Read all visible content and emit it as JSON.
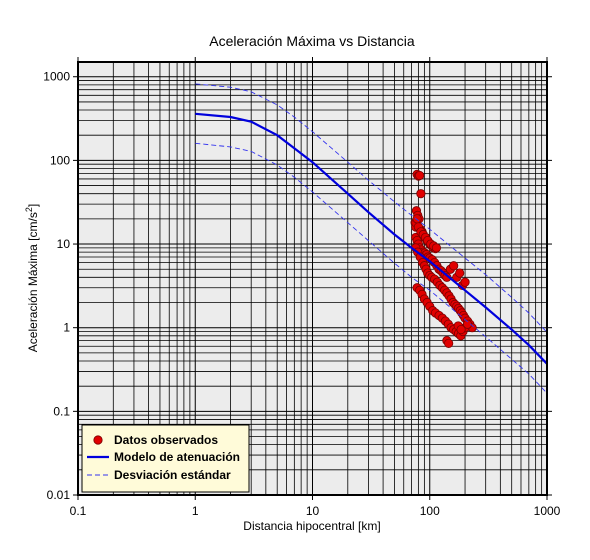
{
  "chart_data": {
    "type": "scatter",
    "title": "Aceleración Máxima vs Distancia",
    "xlabel": "Distancia hipocentral [km]",
    "ylabel_main": "Aceleración Máxima [cm/s",
    "ylabel_sup": "2",
    "ylabel_end": "]",
    "xscale": "log",
    "yscale": "log",
    "xlim": [
      0.1,
      1000
    ],
    "ylim": [
      0.01,
      1500
    ],
    "x_ticks": [
      {
        "value": 0.1,
        "label": "0.1"
      },
      {
        "value": 1,
        "label": "1"
      },
      {
        "value": 10,
        "label": "10"
      },
      {
        "value": 100,
        "label": "100"
      },
      {
        "value": 1000,
        "label": "1000"
      }
    ],
    "y_ticks": [
      {
        "value": 0.01,
        "label": "0.01"
      },
      {
        "value": 0.1,
        "label": "0.1"
      },
      {
        "value": 1,
        "label": "1"
      },
      {
        "value": 10,
        "label": "10"
      },
      {
        "value": 100,
        "label": "100"
      },
      {
        "value": 1000,
        "label": "1000"
      }
    ],
    "grid": true,
    "legend_position": "bottom-left",
    "background_color": "#ececec",
    "series": [
      {
        "name": "Datos observados",
        "kind": "points",
        "color": "#e00000",
        "x": [
          78,
          80,
          82,
          84,
          77,
          79,
          81,
          75,
          76,
          83,
          86,
          88,
          90,
          92,
          95,
          98,
          100,
          104,
          108,
          112,
          76,
          78,
          80,
          82,
          85,
          88,
          91,
          94,
          97,
          100,
          105,
          110,
          115,
          120,
          125,
          130,
          135,
          140,
          76,
          79,
          83,
          87,
          90,
          93,
          96,
          100,
          104,
          110,
          116,
          122,
          128,
          134,
          140,
          146,
          152,
          158,
          164,
          170,
          176,
          182,
          188,
          194,
          200,
          210,
          220,
          230,
          78,
          82,
          86,
          90,
          95,
          100,
          106,
          112,
          120,
          128,
          136,
          144,
          152,
          160,
          168,
          176,
          184,
          192,
          200,
          210,
          150,
          160,
          170,
          180,
          190,
          200,
          140,
          145,
          175,
          185,
          76,
          78,
          80,
          84,
          88,
          92,
          96,
          102,
          108,
          114
        ],
        "y": [
          68,
          65,
          66,
          40,
          25,
          22,
          20,
          18,
          16,
          15,
          14,
          13,
          12,
          12,
          11,
          10.5,
          10,
          9.5,
          9,
          8.8,
          12,
          11,
          10,
          9,
          8.5,
          8,
          7.8,
          7.5,
          7,
          6.8,
          6.5,
          6,
          5.5,
          5,
          4.8,
          4.5,
          4.2,
          4,
          9,
          8,
          7,
          6,
          5.5,
          5,
          4.5,
          4.2,
          4,
          3.8,
          3.5,
          3.2,
          3,
          2.8,
          2.6,
          2.4,
          2.2,
          2,
          1.9,
          1.8,
          1.7,
          1.6,
          1.5,
          1.4,
          1.3,
          1.2,
          1.1,
          1,
          3,
          2.8,
          2.5,
          2.2,
          2,
          1.8,
          1.6,
          1.5,
          1.4,
          1.3,
          1.2,
          1.1,
          1,
          0.95,
          0.9,
          0.85,
          0.8,
          0.9,
          1,
          1.1,
          5,
          5.5,
          4,
          4.5,
          3.2,
          3.5,
          0.7,
          0.65,
          1.05,
          0.95,
          18,
          20,
          16,
          14,
          13,
          12,
          11,
          10,
          9.5,
          9
        ]
      },
      {
        "name": "Modelo de atenuación",
        "kind": "line",
        "color": "#0000dd",
        "x": [
          1,
          2,
          3,
          5,
          7,
          10,
          20,
          30,
          50,
          70,
          100,
          200,
          300,
          500,
          700,
          1000
        ],
        "y": [
          360,
          330,
          290,
          200,
          140,
          95,
          40,
          24,
          13,
          9,
          6.2,
          2.8,
          1.75,
          0.95,
          0.62,
          0.37
        ]
      },
      {
        "name": "Desviación estándar",
        "kind": "dashed",
        "color": "#3333ee",
        "x": [
          1,
          2,
          3,
          5,
          7,
          10,
          20,
          30,
          50,
          70,
          100,
          200,
          300,
          500,
          700,
          1000
        ],
        "y": [
          820,
          750,
          660,
          460,
          330,
          220,
          95,
          58,
          32,
          22,
          15,
          6.8,
          4.3,
          2.3,
          1.5,
          0.88
        ]
      },
      {
        "name": "",
        "kind": "dashed",
        "color": "#3333ee",
        "x": [
          1,
          2,
          3,
          5,
          7,
          10,
          20,
          30,
          50,
          70,
          100,
          200,
          300,
          500,
          700,
          1000
        ],
        "y": [
          160,
          145,
          128,
          88,
          63,
          42,
          18,
          11,
          5.9,
          4,
          2.8,
          1.25,
          0.78,
          0.42,
          0.28,
          0.165
        ]
      }
    ],
    "legend": [
      {
        "label": "Datos observados",
        "symbol": "point"
      },
      {
        "label": "Modelo de atenuación",
        "symbol": "line"
      },
      {
        "label": "Desviación estándar",
        "symbol": "dashed"
      }
    ]
  }
}
